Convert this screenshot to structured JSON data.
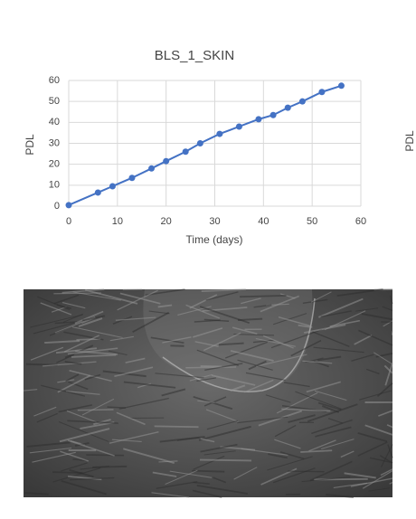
{
  "chart_data": {
    "type": "line",
    "title": "BLS_1_SKIN",
    "xlabel": "Time (days)",
    "ylabel": "PDL",
    "x": [
      0,
      6,
      9,
      13,
      17,
      20,
      24,
      27,
      31,
      35,
      39,
      42,
      45,
      48,
      52,
      56
    ],
    "series": [
      {
        "name": "BLS_1_SKIN",
        "color": "#4472c4",
        "values": [
          0.5,
          6.5,
          9.5,
          13.5,
          18,
          21.5,
          26,
          30,
          34.5,
          38,
          41.5,
          43.5,
          47,
          50,
          54.5,
          57.5
        ]
      }
    ],
    "xlim": [
      0,
      60
    ],
    "xticks": [
      0,
      10,
      20,
      30,
      40,
      50,
      60
    ],
    "ylim": [
      0,
      60
    ],
    "yticks": [
      0,
      10,
      20,
      30,
      40,
      50,
      60
    ],
    "grid": true
  },
  "side_label": "PDL"
}
